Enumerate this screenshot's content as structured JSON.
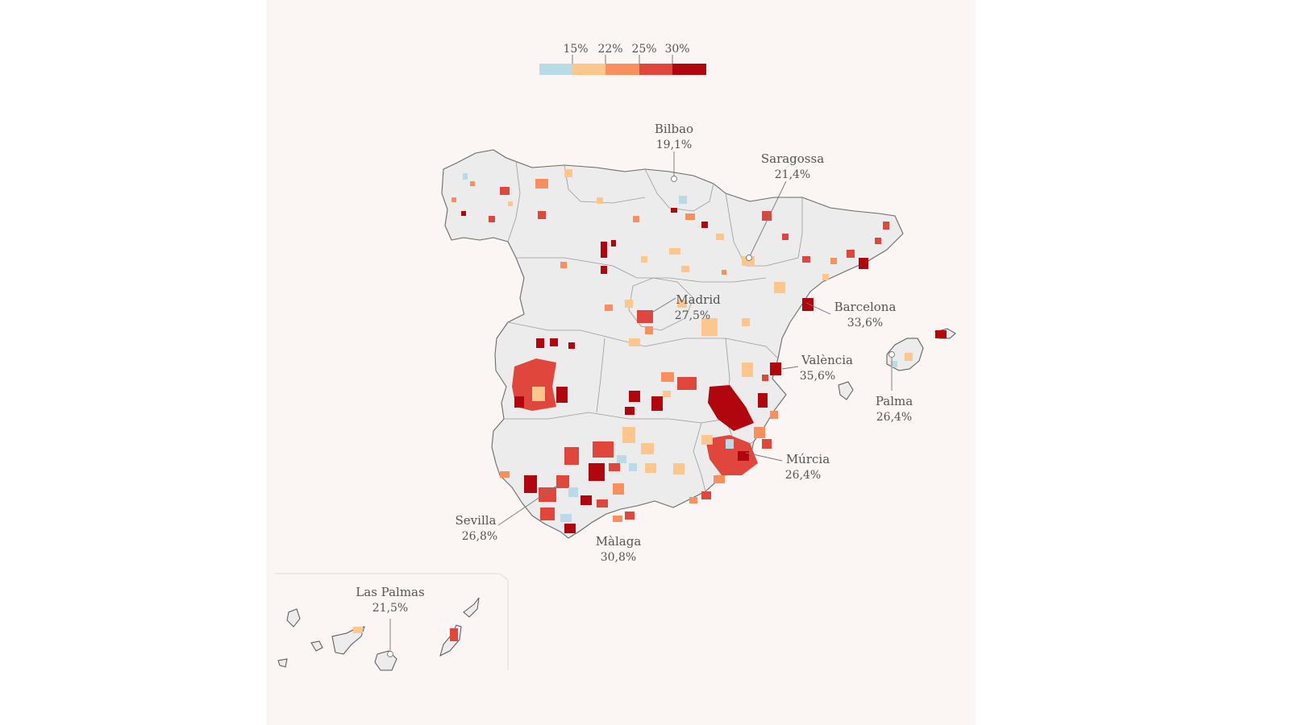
{
  "legend": {
    "thresholds": [
      "15%",
      "22%",
      "25%",
      "30%"
    ],
    "colors": [
      "#b9dbe8",
      "#fcc68c",
      "#f98f5c",
      "#e0463b",
      "#b2060f"
    ]
  },
  "base_color": "#ececec",
  "cities": [
    {
      "id": "bilbao",
      "name": "Bilbao",
      "value": "19,1%"
    },
    {
      "id": "saragossa",
      "name": "Saragossa",
      "value": "21,4%"
    },
    {
      "id": "madrid",
      "name": "Madrid",
      "value": "27,5%"
    },
    {
      "id": "barcelona",
      "name": "Barcelona",
      "value": "33,6%"
    },
    {
      "id": "valencia",
      "name": "València",
      "value": "35,6%"
    },
    {
      "id": "palma",
      "name": "Palma",
      "value": "26,4%"
    },
    {
      "id": "murcia",
      "name": "Múrcia",
      "value": "26,4%"
    },
    {
      "id": "sevilla",
      "name": "Sevilla",
      "value": "26,8%"
    },
    {
      "id": "malaga",
      "name": "Màlaga",
      "value": "30,8%"
    },
    {
      "id": "las-palmas",
      "name": "Las Palmas",
      "value": "21,5%"
    }
  ]
}
